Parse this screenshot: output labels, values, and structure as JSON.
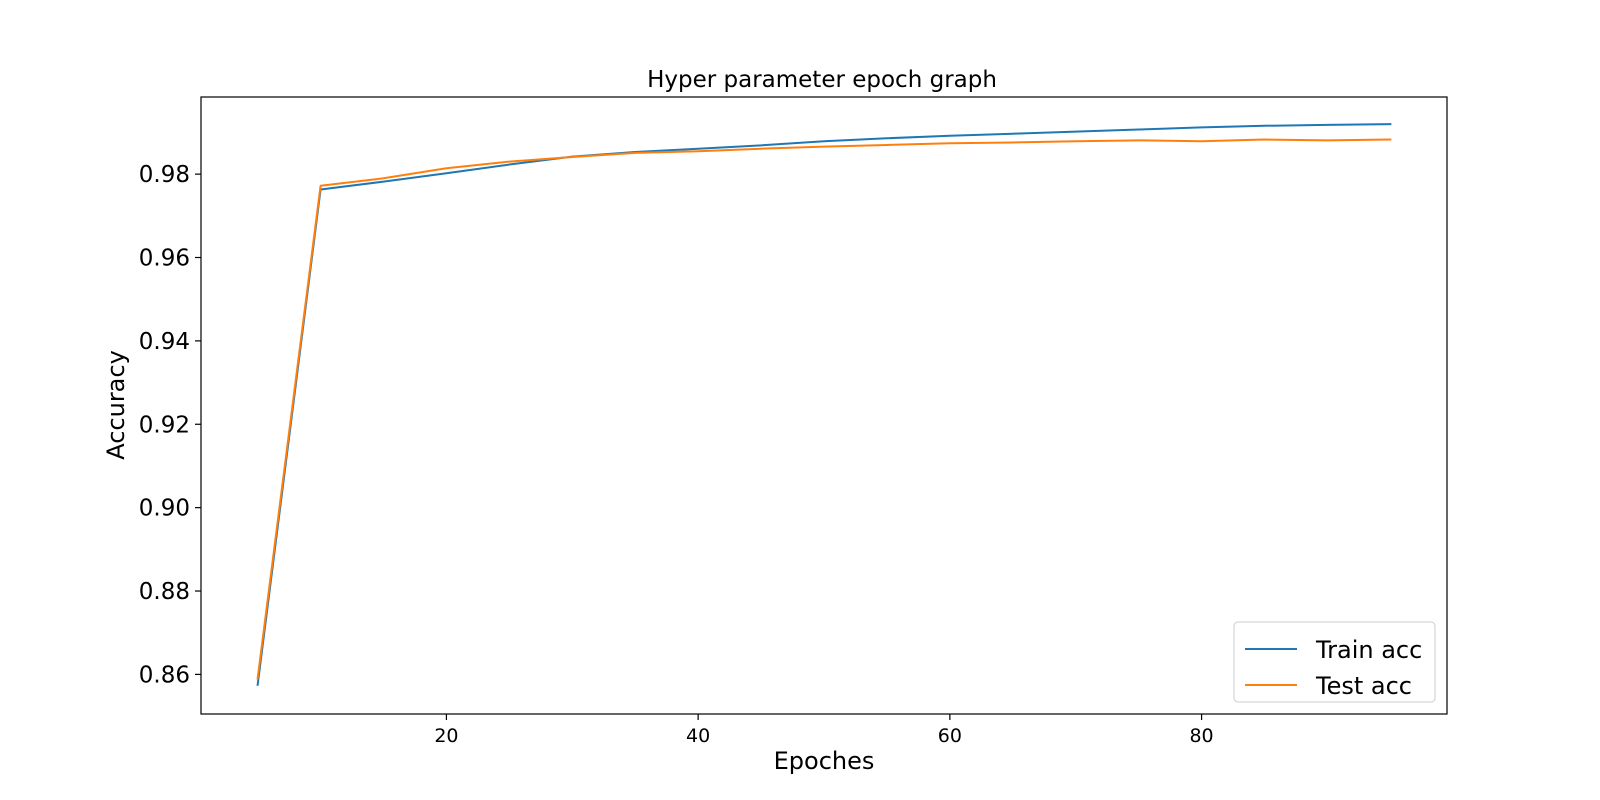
{
  "chart_data": {
    "type": "line",
    "title": "Hyper parameter epoch graph",
    "xlabel": "Epoches",
    "ylabel": "Accuracy",
    "xlim": [
      0.5,
      99.5
    ],
    "ylim": [
      0.8505,
      0.9985
    ],
    "x_ticks": [
      20,
      40,
      60,
      80
    ],
    "y_ticks": [
      0.86,
      0.88,
      0.9,
      0.92,
      0.94,
      0.96,
      0.98
    ],
    "y_tick_labels": [
      "0.86",
      "0.88",
      "0.90",
      "0.92",
      "0.94",
      "0.96",
      "0.98"
    ],
    "legend_position": "lower-right",
    "grid": false,
    "x": [
      5,
      10,
      15,
      20,
      25,
      30,
      35,
      40,
      45,
      50,
      55,
      60,
      65,
      70,
      75,
      80,
      85,
      90,
      95
    ],
    "series": [
      {
        "name": "Train acc",
        "color": "#1f77b4",
        "values": [
          0.8575,
          0.9763,
          0.9782,
          0.9802,
          0.9823,
          0.9842,
          0.9853,
          0.9861,
          0.9869,
          0.9879,
          0.9886,
          0.9892,
          0.9897,
          0.9902,
          0.9907,
          0.9912,
          0.9916,
          0.9918,
          0.992
        ]
      },
      {
        "name": "Test acc",
        "color": "#ff7f0e",
        "values": [
          0.859,
          0.9772,
          0.979,
          0.9814,
          0.983,
          0.9841,
          0.9851,
          0.9855,
          0.9861,
          0.9866,
          0.987,
          0.9874,
          0.9876,
          0.9879,
          0.9881,
          0.9879,
          0.9883,
          0.9881,
          0.9883
        ]
      }
    ]
  }
}
